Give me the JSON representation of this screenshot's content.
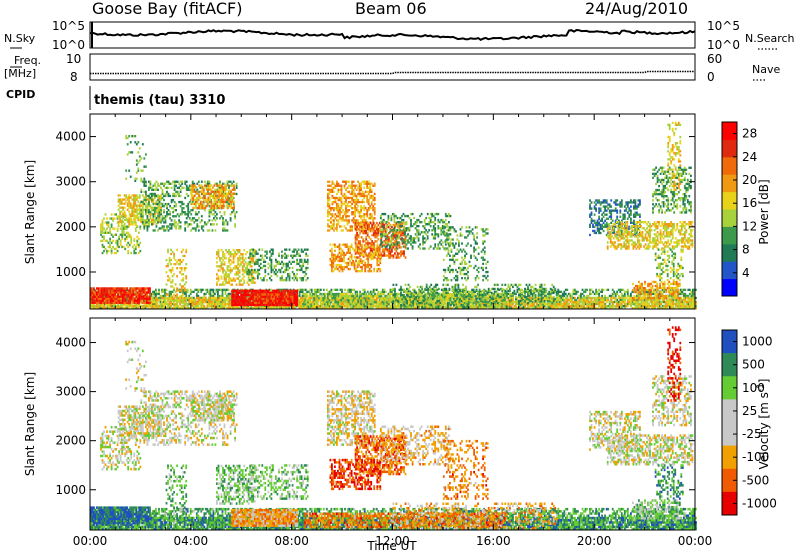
{
  "header": {
    "station": "Goose Bay (fitACF)",
    "beam": "Beam 06",
    "date": "24/Aug/2010"
  },
  "strip_panels": {
    "left_labels": {
      "nsky": "N.Sky",
      "freq": "Freq.",
      "mhz": "[MHz]",
      "cpid": "CPID"
    },
    "right_labels": {
      "nsearch": "N.Search",
      "nave": "Nave"
    },
    "noise_left_ticks": [
      "10^5",
      "10^0"
    ],
    "noise_right_ticks": [
      "10^5",
      "10^0"
    ],
    "freq_left_ticks": [
      "10",
      "8"
    ],
    "nave_right_ticks": [
      "60",
      "0"
    ],
    "cpid_text": "themis (tau) 3310"
  },
  "colors": {
    "power_scale": [
      "#0000ff",
      "#2255c8",
      "#1f7a55",
      "#3c9a4a",
      "#a8d23c",
      "#e8d21a",
      "#f09a14",
      "#f06a0a",
      "#e02a10",
      "#ff0000"
    ],
    "velocity_scale": [
      "#e60000",
      "#f05a00",
      "#f0a000",
      "#c8c8c8",
      "#c8c8c8",
      "#66cc33",
      "#2e8b57",
      "#2050c0"
    ]
  },
  "chart_data": [
    {
      "type": "heatmap",
      "title": "Power",
      "ylabel": "Slant Range [km]",
      "ylim": [
        180,
        4500
      ],
      "xlim_hours": [
        0,
        24
      ],
      "yticks": [
        "1000",
        "2000",
        "3000",
        "4000"
      ],
      "colorbar_label": "Power [dB]",
      "colorbar_ticks": [
        "4",
        "8",
        "12",
        "16",
        "20",
        "24",
        "28"
      ],
      "colorbar_range": [
        0,
        30
      ]
    },
    {
      "type": "heatmap",
      "title": "Velocity",
      "ylabel": "Slant Range [km]",
      "ylim": [
        180,
        4500
      ],
      "xlim_hours": [
        0,
        24
      ],
      "yticks": [
        "1000",
        "2000",
        "3000",
        "4000"
      ],
      "xlabel": "Time UT",
      "xticks": [
        "00:00",
        "04:00",
        "08:00",
        "12:00",
        "16:00",
        "20:00",
        "00:00"
      ],
      "colorbar_label": "Velocity [m s",
      "colorbar_label_sup": "-1",
      "colorbar_label_end": "]",
      "colorbar_ticks": [
        "1000",
        "500",
        "100",
        "25",
        "-25",
        "-100",
        "-500",
        "-1000"
      ]
    }
  ]
}
